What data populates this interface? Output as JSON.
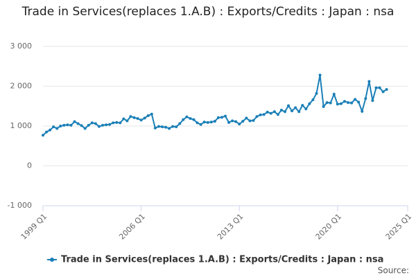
{
  "chart_data": {
    "type": "line",
    "title": "Trade in Services(replaces 1.A.B) : Exports/Credits : Japan : nsa",
    "source": "Source:",
    "x": [
      1999,
      1999.25,
      1999.5,
      1999.75,
      2000,
      2000.25,
      2000.5,
      2000.75,
      2001,
      2001.25,
      2001.5,
      2001.75,
      2002,
      2002.25,
      2002.5,
      2002.75,
      2003,
      2003.25,
      2003.5,
      2003.75,
      2004,
      2004.25,
      2004.5,
      2004.75,
      2005,
      2005.25,
      2005.5,
      2005.75,
      2006,
      2006.25,
      2006.5,
      2006.75,
      2007,
      2007.25,
      2007.5,
      2007.75,
      2008,
      2008.25,
      2008.5,
      2008.75,
      2009,
      2009.25,
      2009.5,
      2009.75,
      2010,
      2010.25,
      2010.5,
      2010.75,
      2011,
      2011.25,
      2011.5,
      2011.75,
      2012,
      2012.25,
      2012.5,
      2012.75,
      2013,
      2013.25,
      2013.5,
      2013.75,
      2014,
      2014.25,
      2014.5,
      2014.75,
      2015,
      2015.25,
      2015.5,
      2015.75,
      2016,
      2016.25,
      2016.5,
      2016.75,
      2017,
      2017.25,
      2017.5,
      2017.75,
      2018,
      2018.25,
      2018.5,
      2018.75,
      2019,
      2019.25,
      2019.5,
      2019.75,
      2020,
      2020.25,
      2020.5,
      2020.75,
      2021,
      2021.25,
      2021.5,
      2021.75,
      2022,
      2022.25,
      2022.5,
      2022.75,
      2023,
      2023.25,
      2023.5
    ],
    "series": [
      {
        "name": "Trade in Services(replaces 1.A.B) : Exports/Credits : Japan : nsa",
        "color": "#1a7fb7",
        "values": [
          770,
          850,
          900,
          980,
          940,
          1000,
          1020,
          1030,
          1020,
          1110,
          1060,
          1010,
          940,
          1020,
          1080,
          1060,
          990,
          1020,
          1030,
          1040,
          1080,
          1090,
          1080,
          1180,
          1130,
          1240,
          1210,
          1190,
          1150,
          1200,
          1260,
          1300,
          950,
          990,
          980,
          970,
          940,
          990,
          980,
          1060,
          1160,
          1230,
          1190,
          1160,
          1080,
          1040,
          1100,
          1090,
          1100,
          1120,
          1210,
          1220,
          1250,
          1090,
          1130,
          1110,
          1050,
          1120,
          1200,
          1130,
          1140,
          1240,
          1280,
          1290,
          1350,
          1320,
          1360,
          1290,
          1400,
          1360,
          1510,
          1380,
          1460,
          1360,
          1520,
          1430,
          1560,
          1660,
          1820,
          2280,
          1490,
          1590,
          1580,
          1800,
          1550,
          1560,
          1620,
          1590,
          1580,
          1670,
          1600,
          1370,
          1690,
          2120,
          1640,
          1960,
          1960,
          1860,
          1920
        ]
      }
    ],
    "xlim": [
      1999,
      2025
    ],
    "xticks": [
      {
        "value": 1999,
        "label": "1999 Q1"
      },
      {
        "value": 2006,
        "label": "2006 Q1"
      },
      {
        "value": 2013,
        "label": "2013 Q1"
      },
      {
        "value": 2020,
        "label": "2020 Q1"
      },
      {
        "value": 2025,
        "label": "2025 Q1"
      }
    ],
    "ylim": [
      -1000,
      3000
    ],
    "yticks": [
      {
        "value": -1000,
        "label": "-1 000"
      },
      0,
      {
        "value": 1000,
        "label": "1 000"
      },
      {
        "value": 2000,
        "label": "2 000"
      },
      {
        "value": 3000,
        "label": "3 000"
      }
    ],
    "grid": true
  }
}
